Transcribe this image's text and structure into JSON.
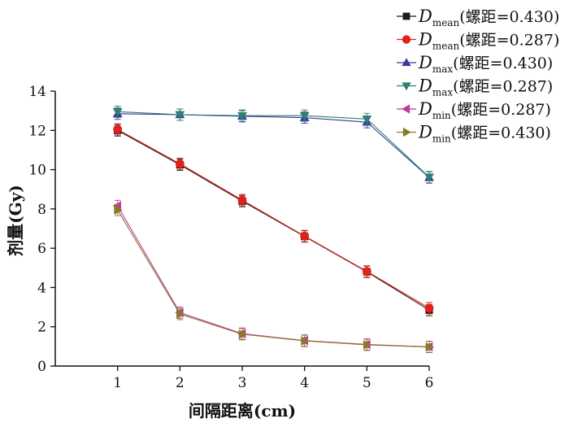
{
  "chart_data": {
    "type": "line",
    "xlabel": "间隔距离(cm)",
    "ylabel": "剂量(Gy)",
    "x": [
      1,
      2,
      3,
      4,
      5,
      6
    ],
    "xlim": [
      0,
      6
    ],
    "ylim": [
      0,
      14
    ],
    "xticks": [
      1,
      2,
      3,
      4,
      5,
      6
    ],
    "yticks": [
      0,
      2,
      4,
      6,
      8,
      10,
      12,
      14
    ],
    "grid": false,
    "legend_position": "top-right",
    "series": [
      {
        "name": "D",
        "sub": "mean",
        "suffix": "(螺距=0.430)",
        "marker": "square",
        "color": "#1a1a1a",
        "values": [
          12.0,
          10.25,
          8.4,
          6.6,
          4.8,
          2.85
        ]
      },
      {
        "name": "D",
        "sub": "mean",
        "suffix": "(螺距=0.287)",
        "marker": "circle",
        "color": "#e0201b",
        "values": [
          12.05,
          10.3,
          8.45,
          6.62,
          4.82,
          2.95
        ]
      },
      {
        "name": "D",
        "sub": "max",
        "suffix": "(螺距=0.430)",
        "marker": "triangle-up",
        "color": "#3b3b9a",
        "values": [
          12.85,
          12.8,
          12.72,
          12.65,
          12.42,
          9.6
        ]
      },
      {
        "name": "D",
        "sub": "max",
        "suffix": "(螺距=0.287)",
        "marker": "triangle-down",
        "color": "#2f7f72",
        "values": [
          12.95,
          12.8,
          12.75,
          12.75,
          12.58,
          9.62
        ]
      },
      {
        "name": "D",
        "sub": "min",
        "suffix": "(螺距=0.287)",
        "marker": "triangle-left",
        "color": "#c0399a",
        "values": [
          8.15,
          2.72,
          1.65,
          1.3,
          1.1,
          0.98
        ]
      },
      {
        "name": "D",
        "sub": "min",
        "suffix": "(螺距=0.430)",
        "marker": "triangle-right",
        "color": "#8a7a2a",
        "values": [
          7.95,
          2.65,
          1.62,
          1.28,
          1.08,
          0.97
        ]
      }
    ]
  }
}
